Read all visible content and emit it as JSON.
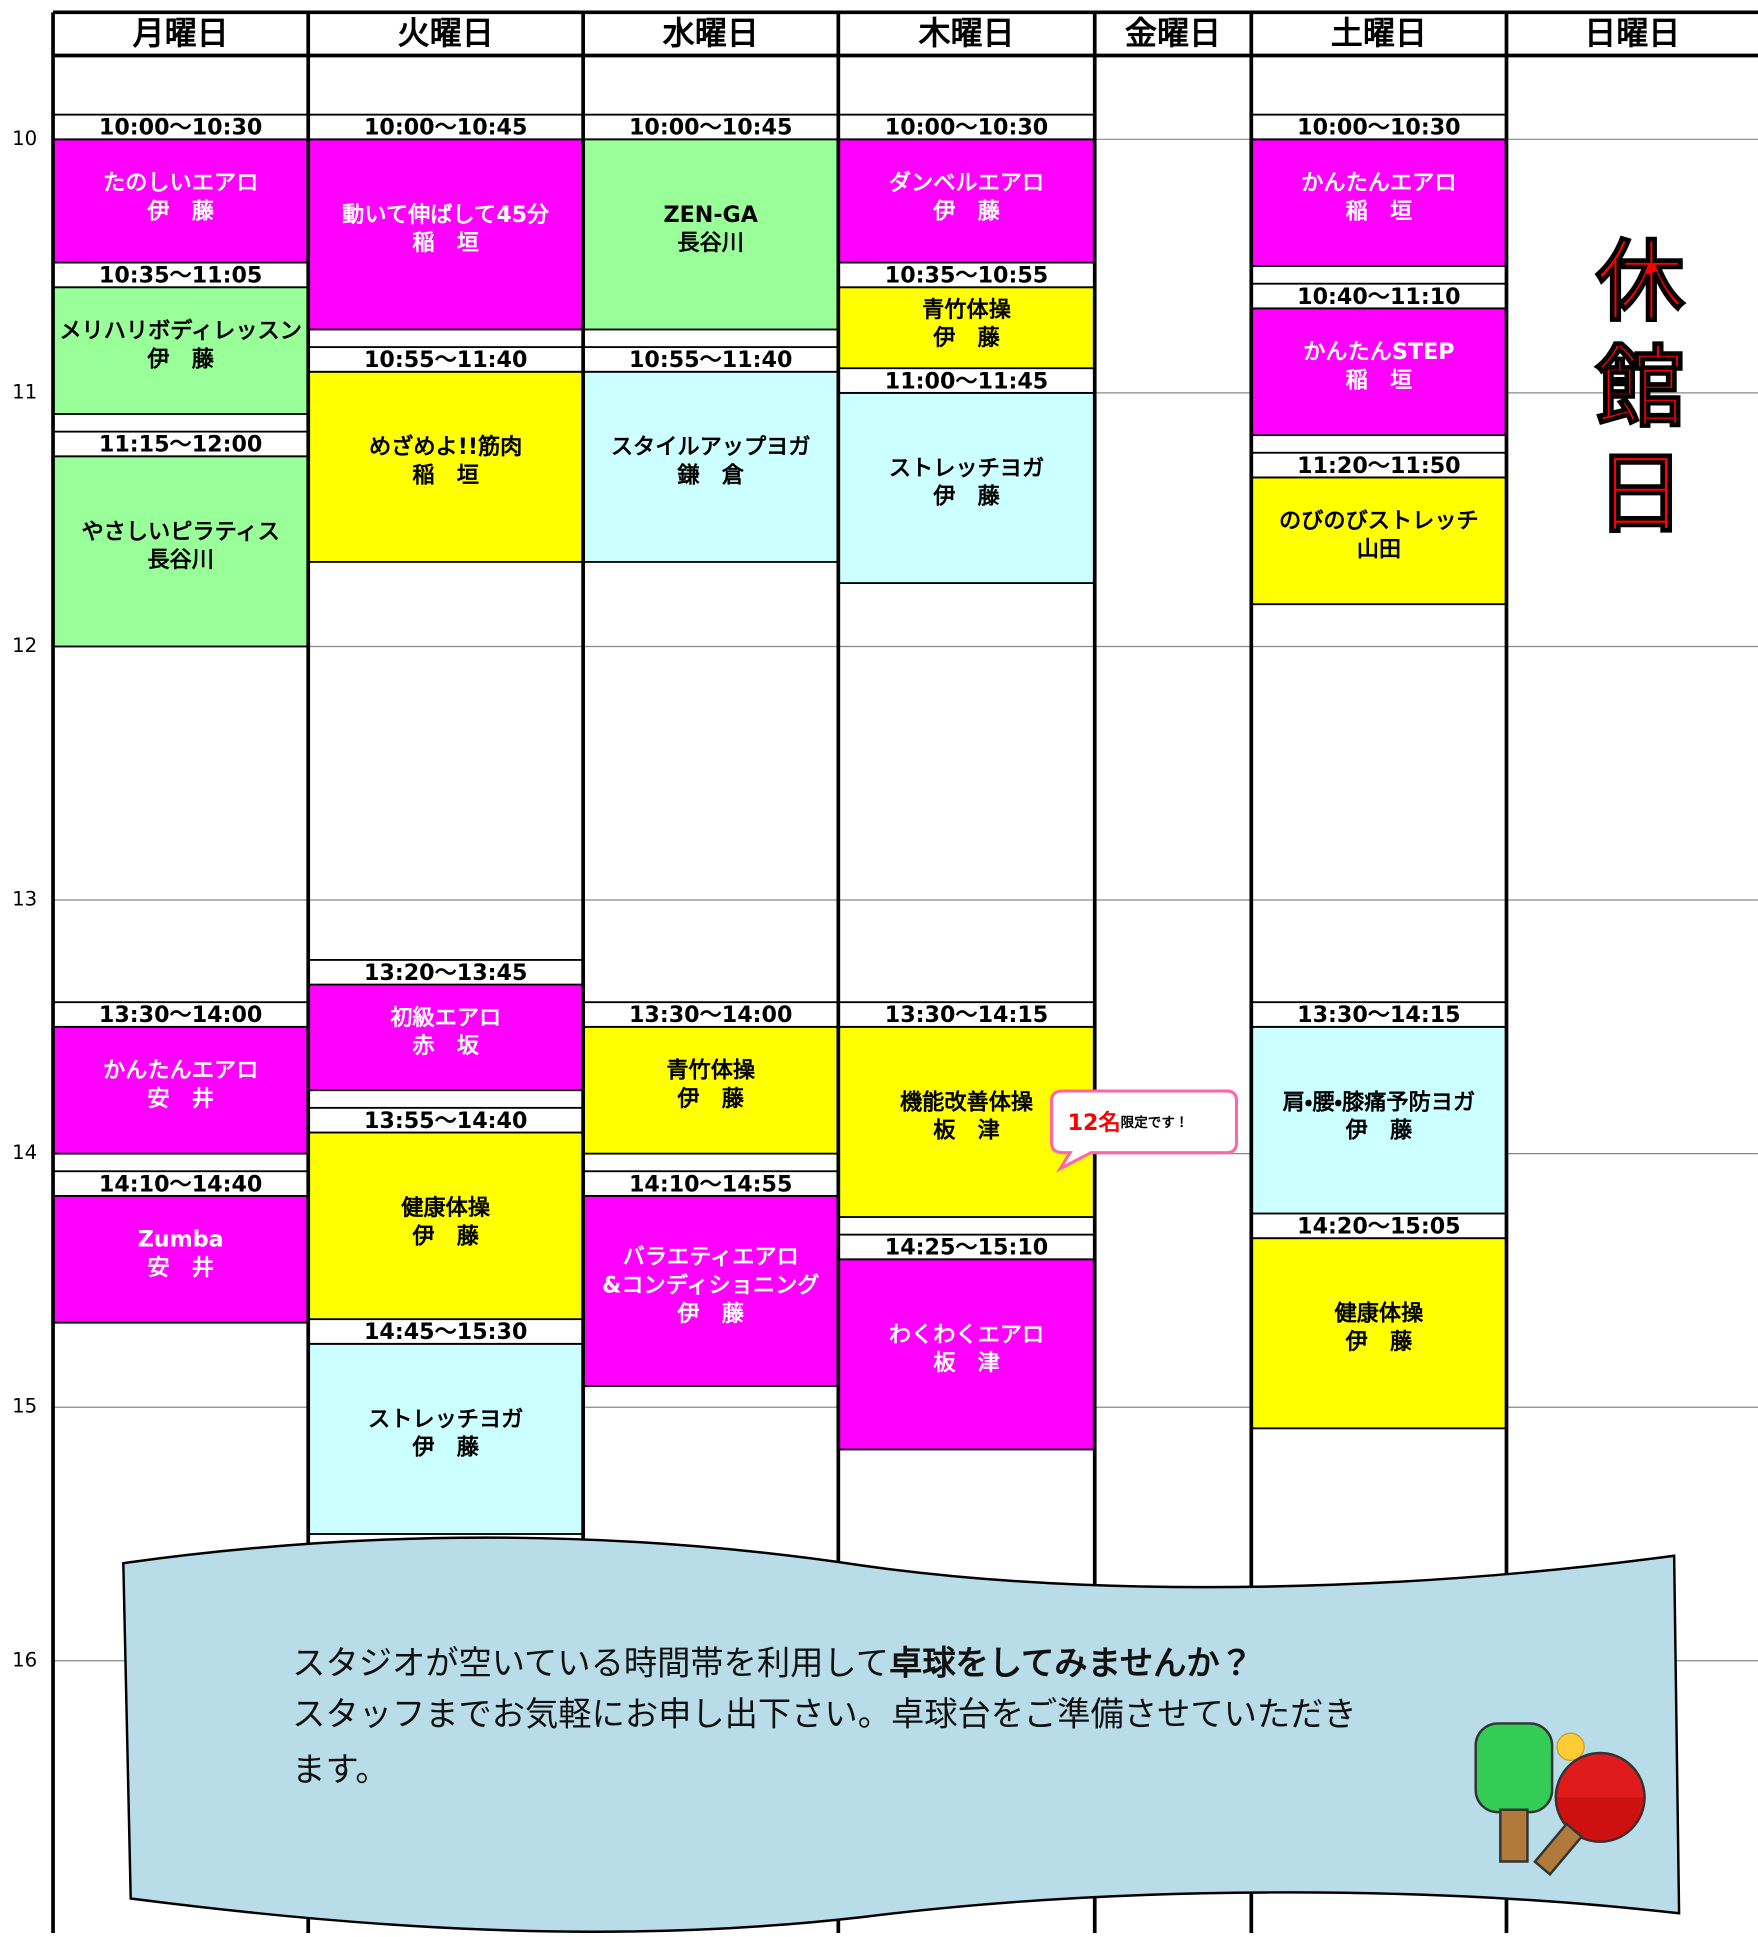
{
  "days": [
    "月曜日",
    "火曜日",
    "水曜日",
    "木曜日",
    "金曜日",
    "土曜日",
    "日曜日"
  ],
  "hours": [
    10,
    11,
    12,
    13,
    14,
    15,
    16
  ],
  "closed_label": "休館日",
  "schedule": [
    [
      {
        "time": "10:00～10:30",
        "lines": [
          "たのしいエアロ",
          "伊　藤"
        ],
        "color": "#ff00ff"
      },
      {
        "time": "10:35～11:05",
        "lines": [
          "メリハリボディレッスン",
          "伊　藤"
        ],
        "color": "#99ff99"
      },
      {
        "time": "11:15～12:00",
        "lines": [
          "やさしいピラティス",
          "長谷川"
        ],
        "color": "#99ff99"
      },
      {
        "time": "13:30～14:00",
        "lines": [
          "かんたんエアロ",
          "安　井"
        ],
        "color": "#ff00ff"
      },
      {
        "time": "14:10～14:40",
        "lines": [
          "Zumba",
          "安　井"
        ],
        "color": "#ff00ff"
      }
    ],
    [
      {
        "time": "10:00～10:45",
        "lines": [
          "動いて伸ばして45分",
          "稲　垣"
        ],
        "color": "#ff00ff"
      },
      {
        "time": "10:55～11:40",
        "lines": [
          "めざめよ!!筋肉",
          "稲　垣"
        ],
        "color": "#ffff00"
      },
      {
        "time": "13:20～13:45",
        "lines": [
          "初級エアロ",
          "赤　坂"
        ],
        "color": "#ff00ff"
      },
      {
        "time": "13:55～14:40",
        "lines": [
          "健康体操",
          "伊　藤"
        ],
        "color": "#ffff00"
      },
      {
        "time": "14:45～15:30",
        "lines": [
          "ストレッチヨガ",
          "伊　藤"
        ],
        "color": "#ccffff"
      }
    ],
    [
      {
        "time": "10:00～10:45",
        "lines": [
          "ZEN-GA",
          "長谷川"
        ],
        "color": "#99ff99"
      },
      {
        "time": "10:55～11:40",
        "lines": [
          "スタイルアップヨガ",
          "鎌　倉"
        ],
        "color": "#ccffff"
      },
      {
        "time": "13:30～14:00",
        "lines": [
          "青竹体操",
          "伊　藤"
        ],
        "color": "#ffff00"
      },
      {
        "time": "14:10～14:55",
        "lines": [
          "バラエティエアロ",
          "&コンディショニング",
          "伊　藤"
        ],
        "color": "#ff00ff"
      }
    ],
    [
      {
        "time": "10:00～10:30",
        "lines": [
          "ダンベルエアロ",
          "伊　藤"
        ],
        "color": "#ff00ff"
      },
      {
        "time": "10:35～10:55",
        "lines": [
          "青竹体操",
          "伊　藤"
        ],
        "color": "#ffff00"
      },
      {
        "time": "11:00～11:45",
        "lines": [
          "ストレッチヨガ",
          "伊　藤"
        ],
        "color": "#ccffff"
      },
      {
        "time": "13:30～14:15",
        "lines": [
          "機能改善体操",
          "板　津"
        ],
        "color": "#ffff00"
      },
      {
        "time": "14:25～15:10",
        "lines": [
          "わくわくエアロ",
          "板　津"
        ],
        "color": "#ff00ff"
      }
    ],
    [],
    [
      {
        "time": "10:00～10:30",
        "lines": [
          "かんたんエアロ",
          "稲　垣"
        ],
        "color": "#ff00ff"
      },
      {
        "time": "10:40～11:10",
        "lines": [
          "かんたんSTEP",
          "稲　垣"
        ],
        "color": "#ff00ff"
      },
      {
        "time": "11:20～11:50",
        "lines": [
          "のびのびストレッチ",
          "山田"
        ],
        "color": "#ffff00"
      },
      {
        "time": "13:30～14:15",
        "lines": [
          "肩・腰・膝痛予防ヨガ",
          "伊　藤"
        ],
        "color": "#ccffff"
      },
      {
        "time": "14:20～15:05",
        "lines": [
          "健康体操",
          "伊　藤"
        ],
        "color": "#ffff00"
      }
    ],
    []
  ],
  "note": {
    "emphasis": "12名",
    "text": "限定です！"
  },
  "banner": {
    "line1": "スタジオが空いている時間帯を利用して",
    "line1_bold": "卓球をしてみませんか？",
    "line2": "スタッフまでお気軽にお申し出下さい。卓球台をご準備させていただき",
    "line3": "ます。"
  }
}
